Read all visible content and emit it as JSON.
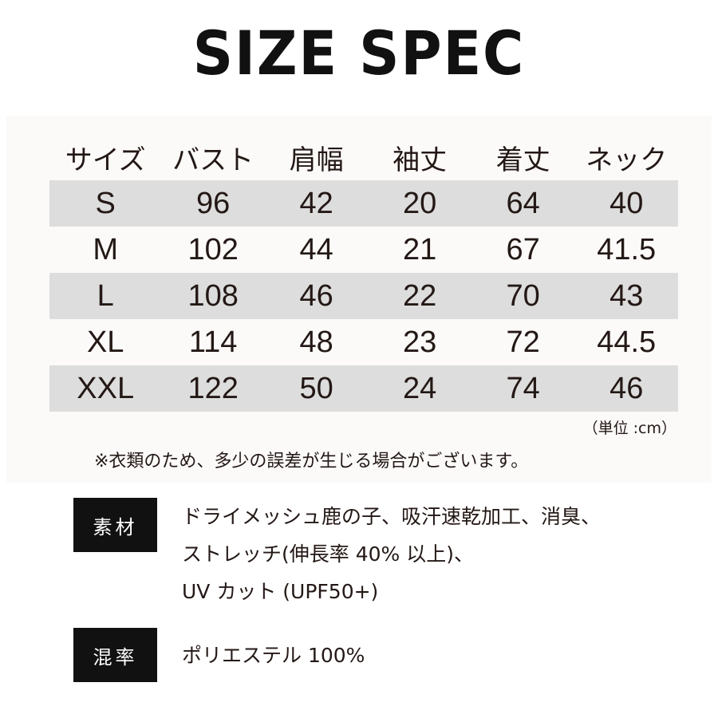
{
  "title": "SIZE SPEC",
  "table": {
    "headers": [
      "サイズ",
      "バスト",
      "肩幅",
      "袖丈",
      "着丈",
      "ネック"
    ],
    "rows": [
      [
        "S",
        "96",
        "42",
        "20",
        "64",
        "40"
      ],
      [
        "M",
        "102",
        "44",
        "21",
        "67",
        "41.5"
      ],
      [
        "L",
        "108",
        "46",
        "22",
        "70",
        "43"
      ],
      [
        "XL",
        "114",
        "48",
        "23",
        "72",
        "44.5"
      ],
      [
        "XXL",
        "122",
        "50",
        "24",
        "74",
        "46"
      ]
    ]
  },
  "unit": "（単位 :cm）",
  "note": "※衣類のため、多少の誤差が生じる場合がございます。",
  "material": {
    "label": "素材",
    "lines": [
      "ドライメッシュ鹿の子、吸汗速乾加工、消臭、",
      "ストレッチ(伸長率 40% 以上)、",
      "UV カット (UPF50+)"
    ]
  },
  "blend": {
    "label": "混率",
    "text": "ポリエステル 100%"
  },
  "colors": {
    "shade_row": "#dcdddc",
    "label_bg": "#111111",
    "text": "#231815"
  }
}
